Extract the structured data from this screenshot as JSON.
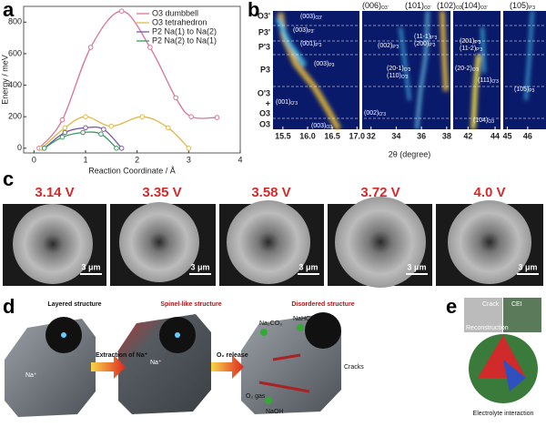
{
  "chart_data": {
    "type": "line",
    "xlabel": "Reaction Coordinate / Å",
    "ylabel": "Energy / meV",
    "xlim": [
      -0.2,
      4
    ],
    "xticks": [
      0,
      1,
      2,
      3,
      4
    ],
    "ylim": [
      -30,
      900
    ],
    "yticks": [
      0,
      200,
      400,
      600,
      800
    ],
    "legend": "upper right",
    "series": [
      {
        "name": "O3 dumbbell",
        "color": "#d9739a",
        "x": [
          0.1,
          0.55,
          1.1,
          1.7,
          2.25,
          2.75,
          3.05,
          3.55
        ],
        "values": [
          0,
          180,
          640,
          870,
          640,
          320,
          200,
          195
        ]
      },
      {
        "name": "O3 tetrahedron",
        "color": "#e0b84a",
        "x": [
          0.15,
          0.6,
          1.0,
          1.5,
          2.1,
          2.6,
          3.0
        ],
        "values": [
          0,
          130,
          200,
          140,
          200,
          130,
          0
        ]
      },
      {
        "name": "P2 Na(1) to Na(2)",
        "color": "#7a5aa0",
        "x": [
          0.2,
          0.6,
          1.0,
          1.35,
          1.7
        ],
        "values": [
          0,
          100,
          130,
          120,
          0
        ]
      },
      {
        "name": "P2 Na(2) to Na(1)",
        "color": "#3c9a60",
        "x": [
          0.2,
          0.55,
          0.95,
          1.3,
          1.6
        ],
        "values": [
          0,
          70,
          100,
          90,
          0
        ]
      }
    ]
  },
  "panel_letters": [
    "a",
    "b",
    "c",
    "d",
    "e"
  ],
  "xrd": {
    "xlabel": "2θ (degree)",
    "phases": [
      "O3'",
      "P3'",
      "P'3",
      "P3",
      "O'3",
      "+",
      "O3",
      "O3"
    ],
    "subpanels": [
      {
        "xlim": [
          15.3,
          17.05
        ],
        "xticks": [
          15.5,
          {
            "value": 16,
            "label": "16.0"
          },
          16.5,
          {
            "value": 17,
            "label": "17.0"
          }
        ]
      },
      {
        "xlim": [
          31.3,
          38.3
        ],
        "xticks": [
          32,
          34,
          36,
          38
        ]
      },
      {
        "xlim": [
          40.9,
          44.4
        ],
        "xticks": [
          42,
          44
        ]
      },
      {
        "xlim": [
          44.8,
          46.9
        ],
        "xticks": [
          45,
          46
        ]
      }
    ],
    "top_labels": [
      [
        "(006)",
        "O3'"
      ],
      [
        "(101)",
        "O3'"
      ],
      [
        "(102)",
        "O3'"
      ],
      [
        "(104)",
        "O3'"
      ],
      [
        "(105)",
        "P'3"
      ]
    ],
    "peak_labels": [
      [
        "(003)",
        "O3'"
      ],
      [
        "(003)",
        "P3'"
      ],
      [
        "(001)",
        "P'3"
      ],
      [
        "(003)",
        "P3"
      ],
      [
        "(001)",
        "O'3"
      ],
      [
        "(003)",
        "O3"
      ],
      [
        "(002)",
        "P'3"
      ],
      [
        "(11-1)",
        "P'3"
      ],
      [
        "(200)",
        "P'3"
      ],
      [
        "(20-1)",
        "O'3"
      ],
      [
        "(110)",
        "O'3"
      ],
      [
        "(002)",
        "O'3"
      ],
      [
        "(201)",
        "P'3"
      ],
      [
        "(11-2)",
        "P'3"
      ],
      [
        "(20-2)",
        "O'3"
      ],
      [
        "(111)",
        "O'3"
      ],
      [
        "(105)",
        "P3"
      ],
      [
        "(104)",
        "O3"
      ]
    ]
  },
  "sem": {
    "voltages": [
      "3.14 V",
      "3.35 V",
      "3.58 V",
      "3.72 V",
      "4.0 V"
    ],
    "scale_bar": "3 μm"
  },
  "schematic": {
    "layered": "Layered structure",
    "na": "Na⁺",
    "extraction": "Extraction of Na⁺",
    "spinel": "Spinel-like structure",
    "o2_release": "O₂ release",
    "disordered": "Disordered structure",
    "na2co3": "Na₂CO₃",
    "nahco3": "NaHCO₃",
    "cracks": "Cracks",
    "o2_gas": "O₂ gas",
    "naoh": "NaOH"
  },
  "interface": {
    "crack": "Crack",
    "cei": "CEI",
    "reconstruction": "Reconstruction",
    "electrolyte": "Electrolyte interaction"
  }
}
